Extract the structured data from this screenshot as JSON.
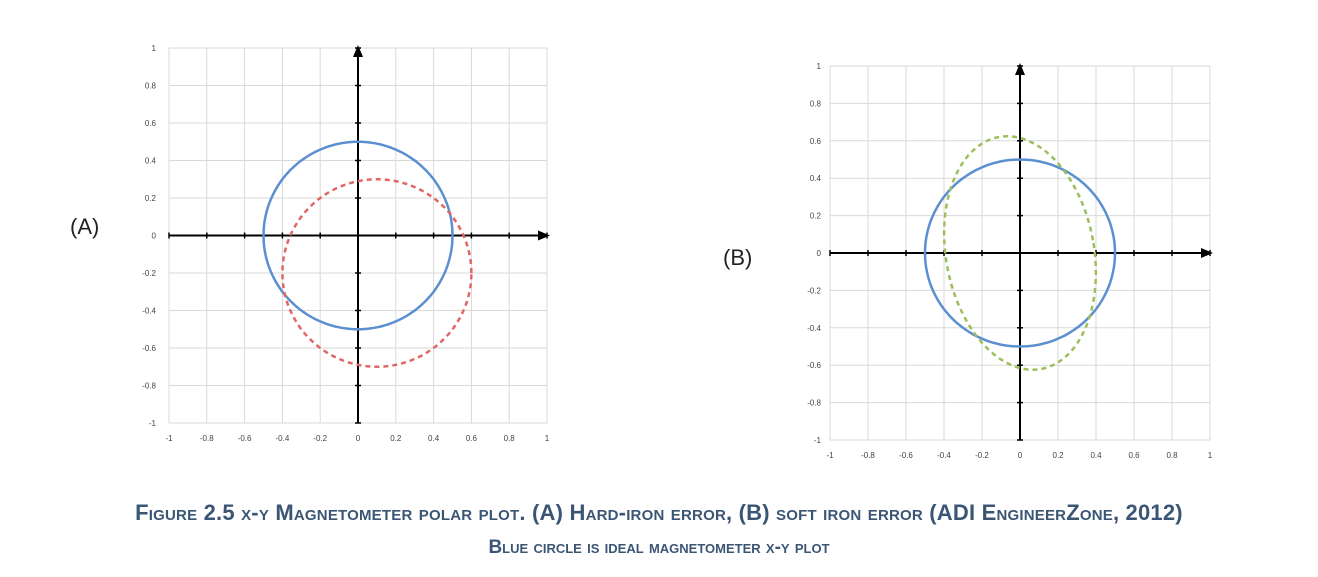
{
  "panels": {
    "a_label": "(A)",
    "b_label": "(B)"
  },
  "caption": {
    "line1": "Figure 2.5 x-y Magnetometer polar plot. (A) Hard-iron error, (B) soft iron error (ADI EngineerZone, 2012)",
    "line2": "Blue circle is ideal magnetometer x-y plot"
  },
  "colors": {
    "ideal": "#5b8fd0",
    "hard_iron": "#e06666",
    "soft_iron": "#9cbf5c",
    "grid": "#d9d9d9",
    "axis": "#000000"
  },
  "chart_data": [
    {
      "type": "line",
      "panel": "A",
      "xlim": [
        -1,
        1
      ],
      "ylim": [
        -1,
        1
      ],
      "x_ticks": [
        "-1",
        "-0.8",
        "-0.6",
        "-0.4",
        "-0.2",
        "0",
        "0.2",
        "0.4",
        "0.6",
        "0.8",
        "1"
      ],
      "y_ticks": [
        "1",
        "0.8",
        "0.6",
        "0.4",
        "0.2",
        "0",
        "-0.2",
        "-0.4",
        "-0.6",
        "-0.8",
        "-1"
      ],
      "grid": true,
      "series": [
        {
          "shape": "circle",
          "center": [
            0,
            0
          ],
          "radius": 0.5,
          "style": "solid",
          "color": "#5b8fd0"
        },
        {
          "shape": "circle",
          "center": [
            0.1,
            -0.2
          ],
          "radius": 0.5,
          "style": "dashed",
          "color": "#e06666"
        }
      ]
    },
    {
      "type": "line",
      "panel": "B",
      "xlim": [
        -1,
        1
      ],
      "ylim": [
        -1,
        1
      ],
      "x_ticks": [
        "-1",
        "-0.8",
        "-0.6",
        "-0.4",
        "-0.2",
        "0",
        "0.2",
        "0.4",
        "0.6",
        "0.8",
        "1"
      ],
      "y_ticks": [
        "1",
        "0.8",
        "0.6",
        "0.4",
        "0.2",
        "0",
        "-0.2",
        "-0.4",
        "-0.6",
        "-0.8",
        "-1"
      ],
      "grid": true,
      "series": [
        {
          "shape": "circle",
          "center": [
            0,
            0
          ],
          "radius": 0.5,
          "style": "solid",
          "color": "#5b8fd0"
        },
        {
          "shape": "ellipse",
          "center": [
            0,
            0
          ],
          "semi_major": 0.63,
          "semi_minor": 0.39,
          "rotation_deg": 100,
          "style": "dashed",
          "color": "#9cbf5c"
        }
      ]
    }
  ]
}
